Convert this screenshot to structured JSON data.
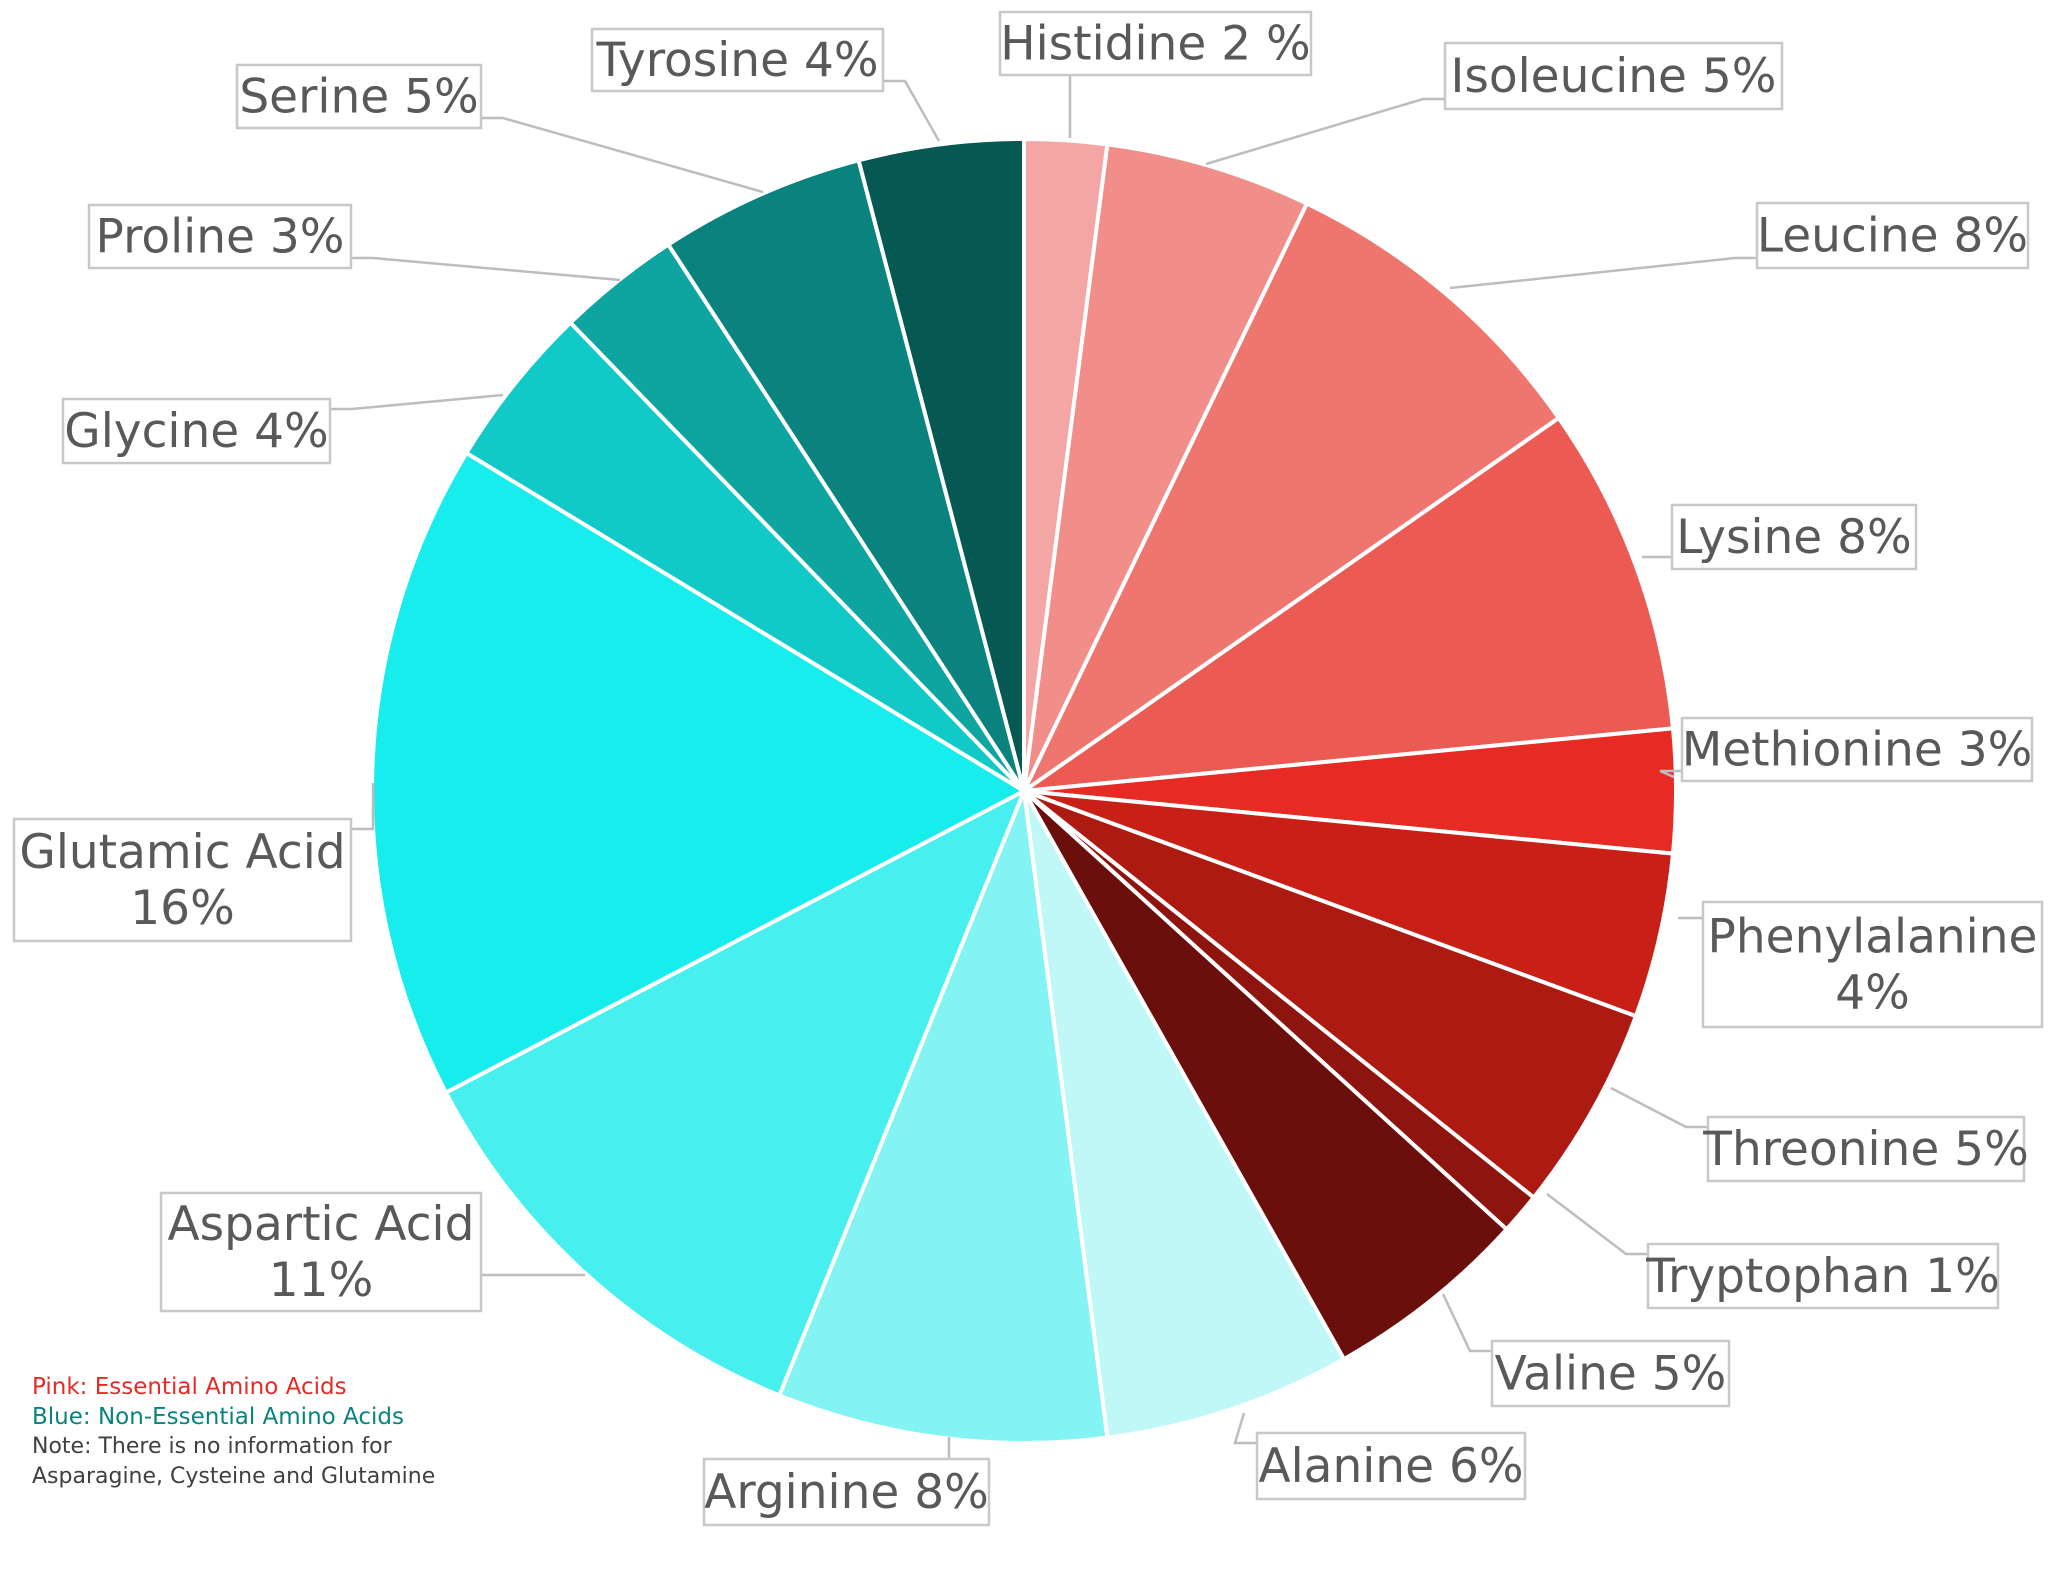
{
  "chart_data": {
    "type": "pie",
    "title": "",
    "slices": [
      {
        "label": "Histidine 2 %",
        "value": 2,
        "color": "#f4a6a4"
      },
      {
        "label": "Isoleucine 5%",
        "value": 5,
        "color": "#f18e89"
      },
      {
        "label": "Leucine 8%",
        "value": 8,
        "color": "#ee766f"
      },
      {
        "label": "Lysine 8%",
        "value": 8,
        "color": "#eb5a53"
      },
      {
        "label": "Methionine 3%",
        "value": 3,
        "color": "#e52b23"
      },
      {
        "label": "Phenylalanine 4%",
        "value": 4,
        "color": "#c81f17"
      },
      {
        "label": "Threonine 5%",
        "value": 5,
        "color": "#ac1a12"
      },
      {
        "label": "Tryptophan 1%",
        "value": 1,
        "color": "#8e150f"
      },
      {
        "label": "Valine 5%",
        "value": 5,
        "color": "#6a0f0c"
      },
      {
        "label": "Alanine 6%",
        "value": 6,
        "color": "#c0f7f7"
      },
      {
        "label": "Arginine 8%",
        "value": 8,
        "color": "#83f3f3"
      },
      {
        "label": "Aspartic Acid 11%",
        "value": 11,
        "color": "#47efef"
      },
      {
        "label": "Glutamic Acid 16%",
        "value": 16,
        "color": "#17eded"
      },
      {
        "label": "Glycine 4%",
        "value": 4,
        "color": "#11c9c7"
      },
      {
        "label": "Proline 3%",
        "value": 3,
        "color": "#0ea4a0"
      },
      {
        "label": "Serine 5%",
        "value": 5,
        "color": "#0a827d"
      },
      {
        "label": "Tyrosine 4%",
        "value": 4,
        "color": "#065852"
      }
    ]
  },
  "labels": [
    {
      "lines": [
        "Histidine 2 %"
      ]
    },
    {
      "lines": [
        "Isoleucine 5%"
      ]
    },
    {
      "lines": [
        "Leucine 8%"
      ]
    },
    {
      "lines": [
        "Lysine 8%"
      ]
    },
    {
      "lines": [
        "Methionine 3%"
      ]
    },
    {
      "lines": [
        "Phenylalanine",
        "4%"
      ]
    },
    {
      "lines": [
        "Threonine 5%"
      ]
    },
    {
      "lines": [
        "Tryptophan 1%"
      ]
    },
    {
      "lines": [
        "Valine 5%"
      ]
    },
    {
      "lines": [
        "Alanine 6%"
      ]
    },
    {
      "lines": [
        "Arginine 8%"
      ]
    },
    {
      "lines": [
        "Aspartic Acid",
        "11%"
      ]
    },
    {
      "lines": [
        "Glutamic Acid",
        "16%"
      ]
    },
    {
      "lines": [
        "Glycine 4%"
      ]
    },
    {
      "lines": [
        "Proline 3%"
      ]
    },
    {
      "lines": [
        "Serine 5%"
      ]
    },
    {
      "lines": [
        "Tyrosine 4%"
      ]
    }
  ],
  "note": {
    "essential": "Pink: Essential Amino Acids",
    "essential_color": "#e52b23",
    "nonessential": "Blue: Non-Essential Amino Acids",
    "nonessential_color": "#0a827d",
    "missing": "Note: There is no information for Asparagine, Cysteine and Glutamine"
  }
}
